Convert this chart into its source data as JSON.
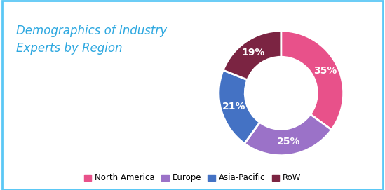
{
  "title": "Demographics of Industry\nExperts by Region",
  "title_color": "#2EA8E0",
  "title_fontsize": 12,
  "background_color": "#ffffff",
  "border_color": "#5BC8F5",
  "labels": [
    "North America",
    "Europe",
    "Asia-Pacific",
    "RoW"
  ],
  "values": [
    35,
    25,
    21,
    19
  ],
  "colors": [
    "#E8518A",
    "#9B72C8",
    "#4472C4",
    "#7B2442"
  ],
  "pct_labels": [
    "35%",
    "25%",
    "21%",
    "19%"
  ],
  "pct_label_color": "#ffffff",
  "pct_fontsize": 10,
  "legend_fontsize": 8.5,
  "donut_width": 0.42,
  "startangle": 90
}
